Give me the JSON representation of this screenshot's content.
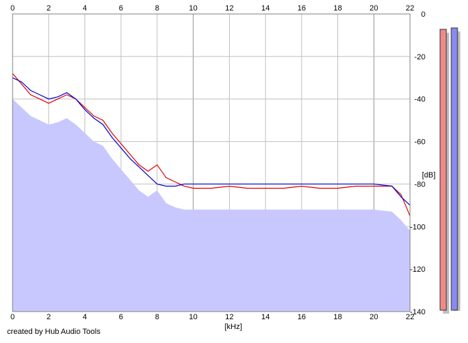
{
  "credit": "created by Hub Audio Tools",
  "colors": {
    "fill": "#c8c8ff",
    "left_channel": "#e00000",
    "right_channel": "#0000d0",
    "grid": "#c0c0c0",
    "major_grid": "#909090",
    "meter_left": "#f08a8a",
    "meter_right": "#8a8af0"
  },
  "chart_data": {
    "type": "line",
    "xlabel": "[kHz]",
    "ylabel": "[dB]",
    "xlim": [
      0,
      22
    ],
    "ylim": [
      -140,
      0
    ],
    "x_ticks": [
      0,
      2,
      4,
      6,
      8,
      10,
      12,
      14,
      16,
      18,
      20,
      22
    ],
    "y_ticks": [
      0,
      -20,
      -40,
      -60,
      -80,
      -100,
      -120,
      -140
    ],
    "grid": true,
    "series": [
      {
        "color": "#e00000",
        "x": [
          0,
          0.5,
          1,
          1.5,
          2,
          2.5,
          3,
          3.5,
          4,
          4.5,
          5,
          5.5,
          6,
          6.5,
          7,
          7.5,
          8,
          8.5,
          9,
          9.5,
          10,
          11,
          12,
          13,
          14,
          15,
          16,
          17,
          18,
          19,
          20,
          21,
          21.5,
          22
        ],
        "y": [
          -28,
          -33,
          -38,
          -40,
          -42,
          -40,
          -38,
          -40,
          -44,
          -48,
          -50,
          -56,
          -61,
          -66,
          -71,
          -74,
          -71,
          -77,
          -79,
          -81,
          -82,
          -82,
          -81,
          -82,
          -82,
          -82,
          -81,
          -82,
          -82,
          -81,
          -81,
          -81,
          -85,
          -95
        ]
      },
      {
        "color": "#0000d0",
        "x": [
          0,
          0.5,
          1,
          1.5,
          2,
          2.5,
          3,
          3.5,
          4,
          4.5,
          5,
          5.5,
          6,
          6.5,
          7,
          7.5,
          8,
          8.5,
          9,
          9.5,
          10,
          11,
          12,
          13,
          14,
          15,
          16,
          17,
          18,
          19,
          20,
          21,
          21.5,
          22
        ],
        "y": [
          -30,
          -32,
          -36,
          -38,
          -40,
          -39,
          -37,
          -40,
          -45,
          -49,
          -52,
          -58,
          -63,
          -68,
          -72,
          -76,
          -80,
          -81,
          -81,
          -80,
          -80,
          -80,
          -80,
          -80,
          -80,
          -80,
          -80,
          -80,
          -80,
          -80,
          -80,
          -81,
          -86,
          -90
        ]
      }
    ]
  },
  "meters": {
    "left_level_db": 0,
    "right_level_db": 0
  }
}
